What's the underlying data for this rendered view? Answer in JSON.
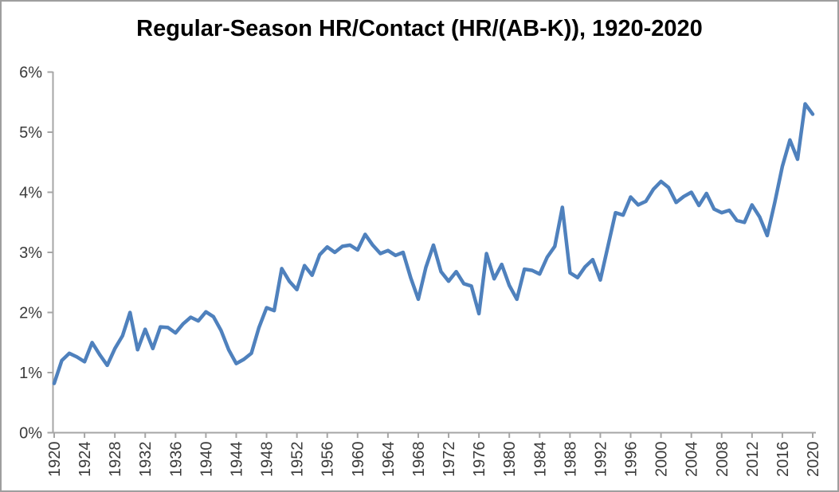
{
  "chart_data": {
    "type": "line",
    "title": "Regular-Season HR/Contact (HR/(AB-K)), 1920-2020",
    "series_name": "HR/Contact (HR/(AB-K))",
    "x": [
      1920,
      1921,
      1922,
      1923,
      1924,
      1925,
      1926,
      1927,
      1928,
      1929,
      1930,
      1931,
      1932,
      1933,
      1934,
      1935,
      1936,
      1937,
      1938,
      1939,
      1940,
      1941,
      1942,
      1943,
      1944,
      1945,
      1946,
      1947,
      1948,
      1949,
      1950,
      1951,
      1952,
      1953,
      1954,
      1955,
      1956,
      1957,
      1958,
      1959,
      1960,
      1961,
      1962,
      1963,
      1964,
      1965,
      1966,
      1967,
      1968,
      1969,
      1970,
      1971,
      1972,
      1973,
      1974,
      1975,
      1976,
      1977,
      1978,
      1979,
      1980,
      1981,
      1982,
      1983,
      1984,
      1985,
      1986,
      1987,
      1988,
      1989,
      1990,
      1991,
      1992,
      1993,
      1994,
      1995,
      1996,
      1997,
      1998,
      1999,
      2000,
      2001,
      2002,
      2003,
      2004,
      2005,
      2006,
      2007,
      2008,
      2009,
      2010,
      2011,
      2012,
      2013,
      2014,
      2015,
      2016,
      2017,
      2018,
      2019,
      2020
    ],
    "values": [
      0.82,
      1.2,
      1.32,
      1.26,
      1.18,
      1.5,
      1.3,
      1.12,
      1.4,
      1.61,
      2.0,
      1.38,
      1.72,
      1.4,
      1.76,
      1.75,
      1.66,
      1.81,
      1.92,
      1.86,
      2.01,
      1.93,
      1.7,
      1.38,
      1.15,
      1.22,
      1.32,
      1.75,
      2.08,
      2.03,
      2.73,
      2.52,
      2.38,
      2.78,
      2.62,
      2.96,
      3.09,
      3.0,
      3.1,
      3.12,
      3.04,
      3.3,
      3.12,
      2.98,
      3.03,
      2.95,
      3.0,
      2.58,
      2.22,
      2.75,
      3.12,
      2.68,
      2.52,
      2.68,
      2.48,
      2.44,
      1.98,
      2.98,
      2.56,
      2.8,
      2.45,
      2.22,
      2.72,
      2.7,
      2.64,
      2.92,
      3.1,
      3.75,
      2.66,
      2.58,
      2.76,
      2.88,
      2.54,
      3.1,
      3.66,
      3.62,
      3.92,
      3.79,
      3.85,
      4.05,
      4.18,
      4.08,
      3.83,
      3.93,
      4.0,
      3.78,
      3.98,
      3.72,
      3.66,
      3.7,
      3.53,
      3.5,
      3.79,
      3.59,
      3.28,
      3.83,
      4.43,
      4.87,
      4.55,
      5.47,
      5.3
    ],
    "xlabel": "",
    "ylabel": "",
    "ylim": [
      0,
      6
    ],
    "ytick_labels": [
      "0%",
      "1%",
      "2%",
      "3%",
      "4%",
      "5%",
      "6%"
    ],
    "xtick_years": [
      1920,
      1924,
      1928,
      1932,
      1936,
      1940,
      1944,
      1948,
      1952,
      1956,
      1960,
      1964,
      1968,
      1972,
      1976,
      1980,
      1984,
      1988,
      1992,
      1996,
      2000,
      2004,
      2008,
      2012,
      2016,
      2020
    ],
    "x_label_rotation_deg": -90,
    "grid": false,
    "legend": "none",
    "line_color": "#4F81BD",
    "axis_color": "#A6A6A6",
    "tick_label_color": "#3B3B3B",
    "title_color": "#000000",
    "background_color": "#FFFFFF"
  }
}
